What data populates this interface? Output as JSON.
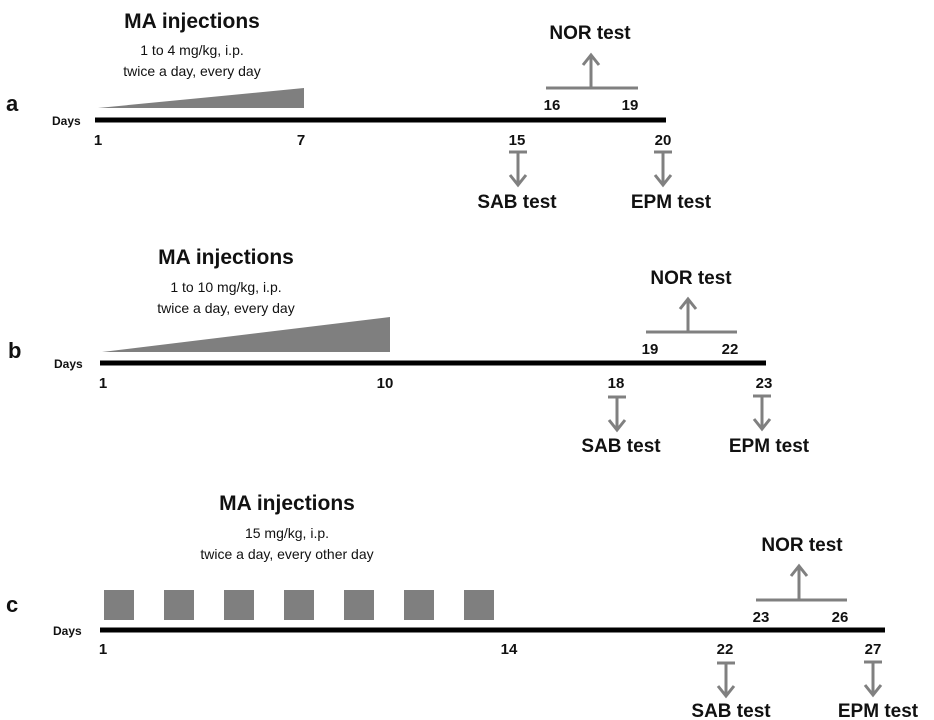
{
  "colors": {
    "timeline": "#000000",
    "injection_fill": "#7f7f7f",
    "arrow": "#808080",
    "text": "#111111"
  },
  "panels": [
    {
      "label": "a",
      "days_label": "Days",
      "inj_title": "MA injections",
      "inj_dose": "1 to 4 mg/kg, i.p.",
      "inj_schedule": "twice a day, every day",
      "day_start": "1",
      "day_inj_end": "7",
      "nor_title": "NOR test",
      "nor_start": "16",
      "nor_end": "19",
      "sab_day": "15",
      "sab_label": "SAB test",
      "epm_day": "20",
      "epm_label": "EPM test"
    },
    {
      "label": "b",
      "days_label": "Days",
      "inj_title": "MA injections",
      "inj_dose": "1 to 10 mg/kg, i.p.",
      "inj_schedule": "twice a day, every day",
      "day_start": "1",
      "day_inj_end": "10",
      "nor_title": "NOR test",
      "nor_start": "19",
      "nor_end": "22",
      "sab_day": "18",
      "sab_label": "SAB test",
      "epm_day": "23",
      "epm_label": "EPM test"
    },
    {
      "label": "c",
      "days_label": "Days",
      "inj_title": "MA injections",
      "inj_dose": "15 mg/kg, i.p.",
      "inj_schedule": "twice a day, every other day",
      "day_start": "1",
      "day_inj_end": "14",
      "nor_title": "NOR test",
      "nor_start": "23",
      "nor_end": "26",
      "sab_day": "22",
      "sab_label": "SAB test",
      "epm_day": "27",
      "epm_label": "EPM test"
    }
  ]
}
